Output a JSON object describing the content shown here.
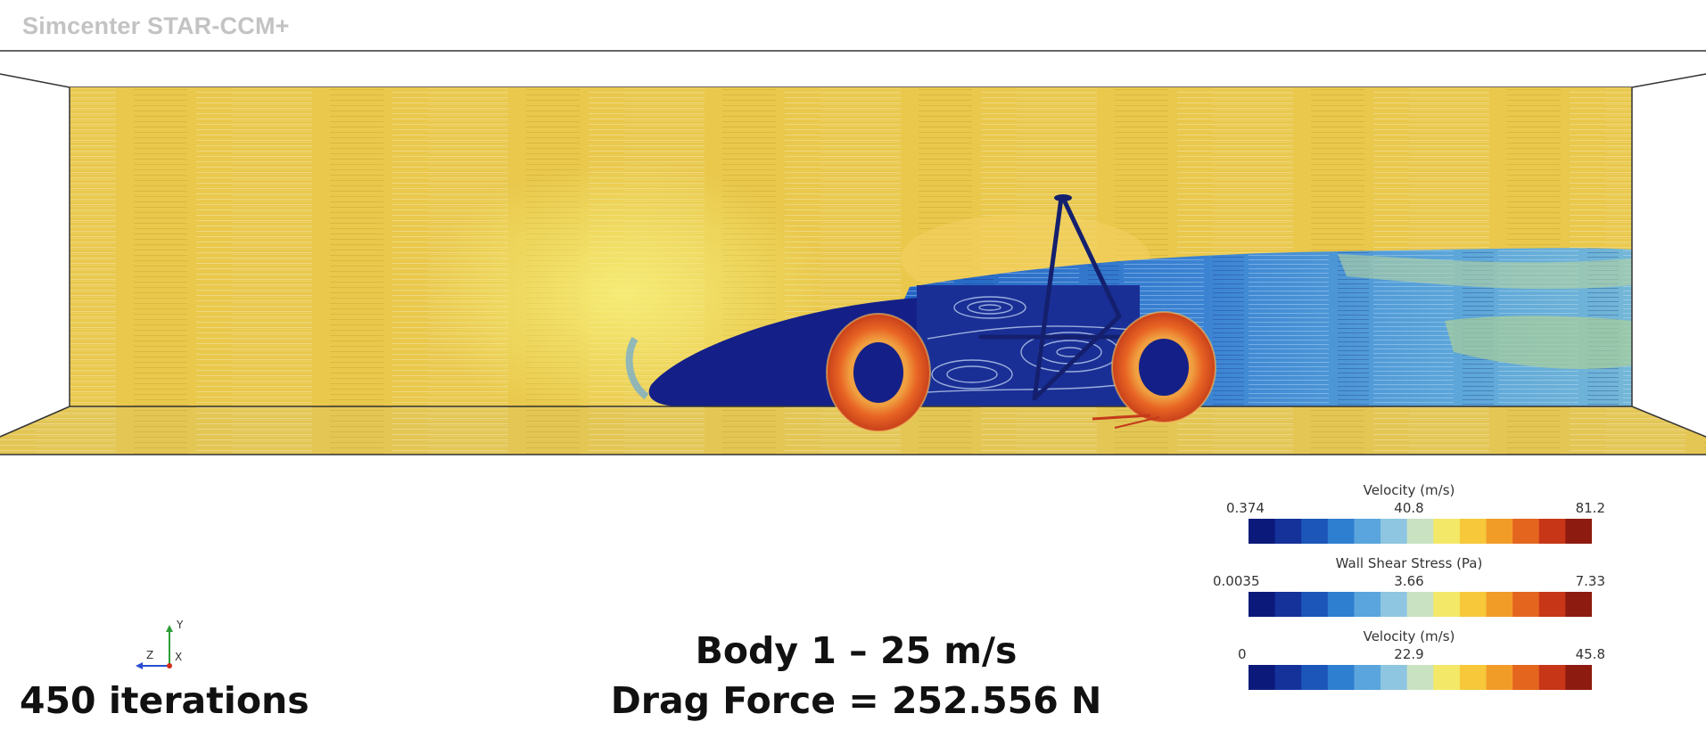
{
  "app": {
    "title": "Simcenter STAR-CCM+"
  },
  "simulation": {
    "caption_title": "Body 1 – 25 m/s",
    "drag_label": "Drag Force = 252.556 N",
    "iterations_label": "450 iterations"
  },
  "axes_triad": {
    "y": "Y",
    "z": "Z",
    "x": "X"
  },
  "legends": [
    {
      "title": "Velocity (m/s)",
      "min": "0.374",
      "mid": "40.8",
      "max": "81.2"
    },
    {
      "title": "Wall Shear Stress (Pa)",
      "min": "0.0035",
      "mid": "3.66",
      "max": "7.33"
    },
    {
      "title": "Velocity (m/s)",
      "min": "0",
      "mid": "22.9",
      "max": "45.8"
    }
  ],
  "colormap": [
    "#0b1a7a",
    "#14329a",
    "#1c56b8",
    "#2f7fd0",
    "#5aa5dd",
    "#8ec5e0",
    "#c9e2c2",
    "#f4e869",
    "#f6c83a",
    "#f29c28",
    "#e4661e",
    "#c73617",
    "#8e1b10"
  ]
}
